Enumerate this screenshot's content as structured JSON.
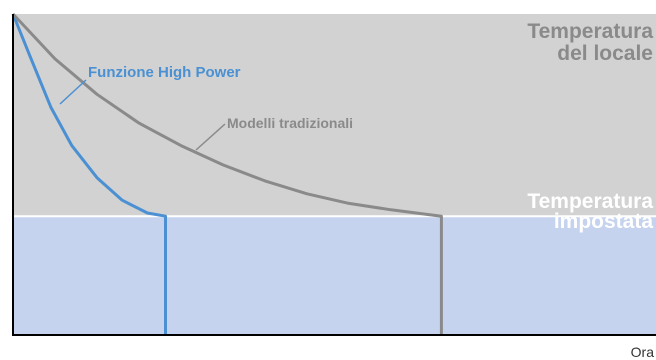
{
  "chart_data": {
    "type": "line",
    "title": "",
    "xlabel": "Ora",
    "ylabel": "",
    "xlim": [
      0,
      100
    ],
    "ylim": [
      0,
      100
    ],
    "grid": false,
    "regions": {
      "above_label": "Temperatura\ndel locale",
      "below_label": "Temperatura\nimpostata",
      "above_color": "#d2d2d2",
      "below_color": "#c5d3ee"
    },
    "setpoint": 37,
    "series": [
      {
        "name": "Funzione High Power",
        "color": "#4a90d2",
        "x": [
          0,
          4,
          9,
          14,
          20,
          26,
          32,
          36.3,
          36.3
        ],
        "y": [
          100,
          87,
          71,
          59,
          49,
          42,
          38,
          37,
          0
        ]
      },
      {
        "name": "Modelli tradizionali",
        "color": "#8a8a8a",
        "x": [
          0,
          10,
          20,
          30,
          40,
          50,
          60,
          70,
          80,
          90,
          102,
          102
        ],
        "y": [
          100,
          86,
          75,
          66,
          59,
          53,
          48,
          44,
          41,
          39,
          37,
          0
        ]
      }
    ]
  }
}
